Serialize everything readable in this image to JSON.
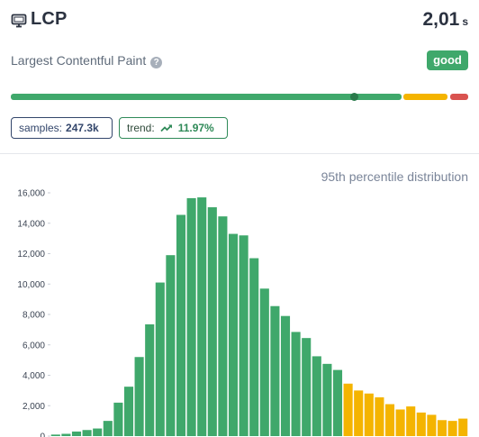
{
  "header": {
    "title": "LCP",
    "icon": "monitor-icon",
    "value": "2,01",
    "unit": "s"
  },
  "subtitle": {
    "text": "Largest Contentful Paint",
    "help_icon": "question-circle-icon",
    "help_glyph": "?"
  },
  "rating": {
    "label": "good",
    "color": "#3fa86b"
  },
  "score_bar": {
    "colors": {
      "good": "#3fa86b",
      "needs_improvement": "#f4b400",
      "poor": "#d9534f"
    },
    "marker_fraction": 0.763
  },
  "stats": {
    "samples_label": "samples:",
    "samples_value": "247.3k",
    "trend_label": "trend:",
    "trend_icon": "trending-up-icon",
    "trend_value": "11.97%"
  },
  "distribution": {
    "title": "95th percentile distribution"
  },
  "chart_data": {
    "type": "bar",
    "yticks": [
      "0",
      "2,000",
      "4,000",
      "6,000",
      "8,000",
      "10,000",
      "12,000",
      "14,000",
      "16,000"
    ],
    "ylim": [
      0,
      16000
    ],
    "values": [
      100,
      150,
      300,
      400,
      500,
      1000,
      2200,
      3250,
      5200,
      7350,
      10100,
      11900,
      14550,
      15650,
      15700,
      15050,
      14450,
      13300,
      13200,
      11700,
      9700,
      8550,
      7900,
      6850,
      6450,
      5250,
      4750,
      4350,
      3450,
      3000,
      2800,
      2550,
      2100,
      1750,
      1950,
      1550,
      1400,
      1050,
      1000,
      1150
    ],
    "good_count": 28,
    "colors": {
      "good": "#3fa86b",
      "needs_improvement": "#f4b400"
    },
    "grid": false
  }
}
